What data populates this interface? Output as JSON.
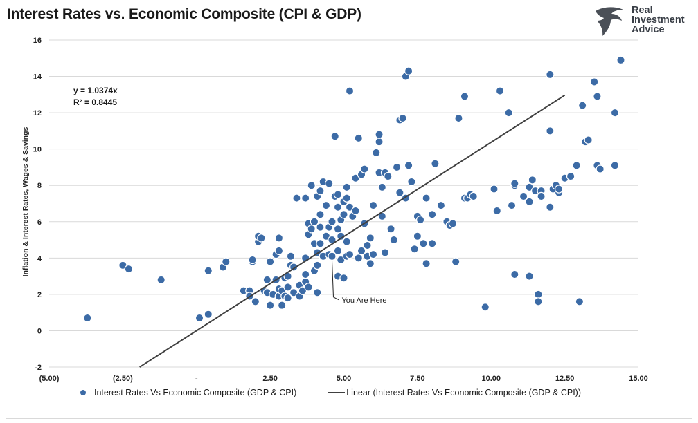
{
  "title": "Interest Rates vs. Economic Composite (CPI & GDP)",
  "logo": {
    "line1": "Real",
    "line2": "Investment",
    "line3": "Advice"
  },
  "colors": {
    "marker": "#3c6ba6",
    "marker_stroke": "#ffffff",
    "trendline": "#404040",
    "grid": "#d9d9d9"
  },
  "chart_data": {
    "type": "scatter",
    "title": "Interest Rates vs. Economic Composite (CPI & GDP)",
    "xlabel": "",
    "ylabel": "Inflation & Interest Rates, Wages & Savings",
    "xlim": [
      -5,
      15
    ],
    "ylim": [
      -2,
      16
    ],
    "xticks": [
      -5,
      -2.5,
      0,
      2.5,
      5,
      7.5,
      10,
      12.5,
      15
    ],
    "xtick_labels": [
      "(5.00)",
      "(2.50)",
      "-",
      "2.50",
      "5.00",
      "7.50",
      "10.00",
      "12.50",
      "15.00"
    ],
    "yticks": [
      -2,
      0,
      2,
      4,
      6,
      8,
      10,
      12,
      14,
      16
    ],
    "ytick_labels": [
      "-2",
      "0",
      "2",
      "4",
      "6",
      "8",
      "10",
      "12",
      "14",
      "16"
    ],
    "grid": "horizontal",
    "legend_position": "bottom",
    "equation": "y = 1.0374x",
    "r_squared": "R² = 0.8445",
    "annotation": {
      "text": "You Are Here",
      "x": 4.6,
      "y": 4.1
    },
    "series": [
      {
        "name": "Interest Rates Vs Economic Composite (GDP & CPI)",
        "kind": "scatter",
        "points": [
          [
            -3.7,
            0.7
          ],
          [
            -2.5,
            3.6
          ],
          [
            -2.3,
            3.4
          ],
          [
            -1.2,
            2.8
          ],
          [
            0.1,
            0.7
          ],
          [
            0.4,
            0.9
          ],
          [
            0.4,
            3.3
          ],
          [
            0.9,
            3.5
          ],
          [
            1.0,
            3.8
          ],
          [
            1.6,
            2.2
          ],
          [
            1.8,
            2.2
          ],
          [
            1.8,
            1.9
          ],
          [
            1.9,
            3.8
          ],
          [
            1.9,
            3.9
          ],
          [
            2.0,
            1.6
          ],
          [
            2.1,
            4.9
          ],
          [
            2.1,
            5.2
          ],
          [
            2.2,
            5.1
          ],
          [
            2.3,
            2.2
          ],
          [
            2.4,
            2.1
          ],
          [
            2.4,
            2.8
          ],
          [
            2.5,
            1.4
          ],
          [
            2.5,
            3.8
          ],
          [
            2.6,
            2.0
          ],
          [
            2.7,
            2.8
          ],
          [
            2.7,
            4.2
          ],
          [
            2.8,
            1.9
          ],
          [
            2.8,
            2.3
          ],
          [
            2.8,
            4.4
          ],
          [
            2.8,
            5.1
          ],
          [
            2.9,
            1.4
          ],
          [
            2.9,
            2.2
          ],
          [
            3.0,
            2.9
          ],
          [
            3.0,
            1.9
          ],
          [
            3.1,
            2.4
          ],
          [
            3.1,
            3.0
          ],
          [
            3.1,
            1.8
          ],
          [
            3.2,
            4.1
          ],
          [
            3.2,
            3.6
          ],
          [
            3.3,
            3.5
          ],
          [
            3.3,
            2.1
          ],
          [
            3.4,
            7.3
          ],
          [
            3.5,
            2.5
          ],
          [
            3.5,
            1.9
          ],
          [
            3.6,
            2.2
          ],
          [
            3.7,
            2.7
          ],
          [
            3.7,
            3.1
          ],
          [
            3.7,
            4.0
          ],
          [
            3.7,
            7.3
          ],
          [
            3.8,
            2.4
          ],
          [
            3.8,
            5.3
          ],
          [
            3.8,
            5.9
          ],
          [
            3.9,
            5.6
          ],
          [
            3.9,
            8.0
          ],
          [
            4.0,
            3.3
          ],
          [
            4.0,
            4.8
          ],
          [
            4.0,
            6.0
          ],
          [
            4.1,
            7.4
          ],
          [
            4.1,
            2.1
          ],
          [
            4.1,
            3.6
          ],
          [
            4.1,
            4.3
          ],
          [
            4.2,
            4.8
          ],
          [
            4.2,
            5.7
          ],
          [
            4.2,
            6.4
          ],
          [
            4.2,
            7.7
          ],
          [
            4.3,
            4.1
          ],
          [
            4.3,
            8.2
          ],
          [
            4.4,
            6.9
          ],
          [
            4.4,
            5.2
          ],
          [
            4.5,
            4.2
          ],
          [
            4.5,
            5.7
          ],
          [
            4.5,
            8.1
          ],
          [
            4.6,
            4.1
          ],
          [
            4.6,
            5.0
          ],
          [
            4.6,
            6.0
          ],
          [
            4.7,
            10.7
          ],
          [
            4.7,
            7.4
          ],
          [
            4.8,
            5.6
          ],
          [
            4.8,
            6.8
          ],
          [
            4.8,
            7.5
          ],
          [
            4.8,
            4.4
          ],
          [
            4.8,
            3.0
          ],
          [
            4.9,
            3.9
          ],
          [
            4.9,
            6.1
          ],
          [
            4.9,
            5.2
          ],
          [
            5.0,
            7.1
          ],
          [
            5.0,
            6.4
          ],
          [
            5.0,
            2.9
          ],
          [
            5.1,
            4.1
          ],
          [
            5.1,
            4.9
          ],
          [
            5.1,
            7.3
          ],
          [
            5.1,
            7.9
          ],
          [
            5.2,
            4.2
          ],
          [
            5.2,
            13.2
          ],
          [
            5.2,
            6.8
          ],
          [
            5.3,
            6.3
          ],
          [
            5.4,
            6.6
          ],
          [
            5.4,
            8.4
          ],
          [
            5.5,
            4.0
          ],
          [
            5.5,
            10.6
          ],
          [
            5.6,
            8.6
          ],
          [
            5.6,
            4.4
          ],
          [
            5.7,
            5.9
          ],
          [
            5.7,
            8.9
          ],
          [
            5.8,
            4.7
          ],
          [
            5.8,
            4.1
          ],
          [
            5.9,
            5.1
          ],
          [
            5.9,
            3.7
          ],
          [
            6.0,
            4.2
          ],
          [
            6.0,
            6.9
          ],
          [
            6.1,
            9.8
          ],
          [
            6.2,
            8.7
          ],
          [
            6.2,
            10.4
          ],
          [
            6.2,
            10.8
          ],
          [
            6.3,
            6.3
          ],
          [
            6.3,
            7.9
          ],
          [
            6.4,
            8.7
          ],
          [
            6.4,
            4.3
          ],
          [
            6.5,
            8.5
          ],
          [
            6.6,
            5.6
          ],
          [
            6.7,
            5.0
          ],
          [
            6.8,
            9.0
          ],
          [
            6.9,
            11.6
          ],
          [
            6.9,
            7.6
          ],
          [
            7.0,
            11.7
          ],
          [
            7.1,
            7.3
          ],
          [
            7.1,
            14.0
          ],
          [
            7.2,
            14.3
          ],
          [
            7.2,
            9.1
          ],
          [
            7.3,
            8.2
          ],
          [
            7.4,
            4.5
          ],
          [
            7.5,
            5.2
          ],
          [
            7.5,
            6.3
          ],
          [
            7.6,
            6.1
          ],
          [
            7.7,
            4.8
          ],
          [
            7.8,
            3.7
          ],
          [
            7.8,
            7.3
          ],
          [
            8.0,
            4.8
          ],
          [
            8.0,
            6.4
          ],
          [
            8.1,
            9.2
          ],
          [
            8.3,
            6.9
          ],
          [
            8.5,
            6.0
          ],
          [
            8.6,
            5.8
          ],
          [
            8.7,
            5.9
          ],
          [
            8.8,
            3.8
          ],
          [
            8.9,
            11.7
          ],
          [
            9.1,
            7.3
          ],
          [
            9.1,
            12.9
          ],
          [
            9.2,
            7.3
          ],
          [
            9.3,
            7.5
          ],
          [
            9.4,
            7.4
          ],
          [
            9.8,
            1.3
          ],
          [
            10.1,
            7.8
          ],
          [
            10.2,
            6.6
          ],
          [
            10.3,
            13.2
          ],
          [
            10.6,
            12.0
          ],
          [
            10.7,
            6.9
          ],
          [
            10.8,
            8.0
          ],
          [
            10.8,
            8.1
          ],
          [
            10.8,
            3.1
          ],
          [
            11.1,
            7.4
          ],
          [
            11.3,
            3.0
          ],
          [
            11.3,
            7.9
          ],
          [
            11.3,
            7.1
          ],
          [
            11.4,
            8.3
          ],
          [
            11.5,
            7.7
          ],
          [
            11.6,
            2.0
          ],
          [
            11.6,
            1.6
          ],
          [
            11.7,
            7.7
          ],
          [
            11.7,
            7.4
          ],
          [
            12.0,
            11.0
          ],
          [
            12.0,
            14.1
          ],
          [
            12.0,
            6.8
          ],
          [
            12.1,
            7.8
          ],
          [
            12.2,
            8.0
          ],
          [
            12.3,
            7.6
          ],
          [
            12.3,
            7.8
          ],
          [
            12.5,
            8.4
          ],
          [
            12.7,
            8.5
          ],
          [
            12.9,
            9.1
          ],
          [
            13.0,
            1.6
          ],
          [
            13.1,
            12.4
          ],
          [
            13.2,
            10.4
          ],
          [
            13.3,
            10.5
          ],
          [
            13.5,
            13.7
          ],
          [
            13.6,
            9.1
          ],
          [
            13.6,
            12.9
          ],
          [
            13.7,
            8.9
          ],
          [
            14.2,
            9.1
          ],
          [
            14.2,
            12.0
          ],
          [
            14.4,
            14.9
          ]
        ]
      },
      {
        "name": "Linear (Interest Rates Vs Economic Composite (GDP & CPI))",
        "kind": "trendline",
        "slope": 1.0374,
        "x_range": [
          -1.93,
          12.5
        ]
      }
    ]
  }
}
